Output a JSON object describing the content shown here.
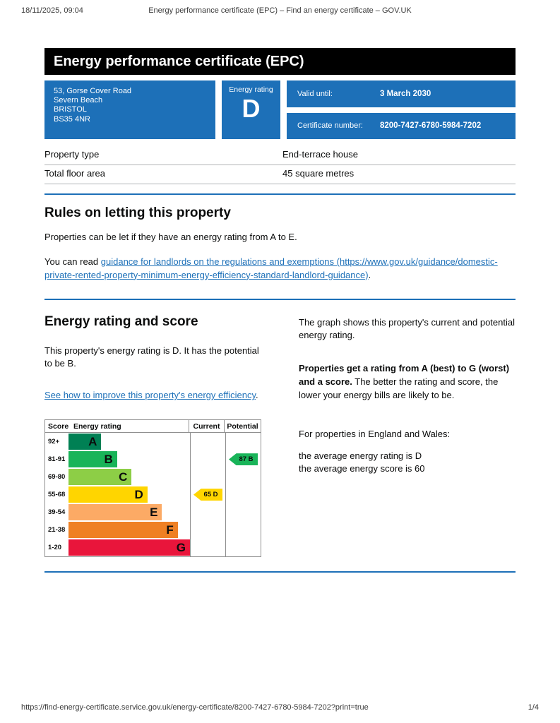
{
  "print_header": {
    "datetime": "18/11/2025, 09:04",
    "title": "Energy performance certificate (EPC) – Find an energy certificate – GOV.UK"
  },
  "banner": {
    "title": "Energy performance certificate (EPC)"
  },
  "summary": {
    "address_lines": [
      "53, Gorse Cover Road",
      "Severn Beach",
      "BRISTOL",
      "BS35 4NR"
    ],
    "rating_label": "Energy rating",
    "rating_value": "D",
    "valid_until_label": "Valid until:",
    "valid_until_value": "3 March 2030",
    "cert_number_label": "Certificate number:",
    "cert_number_value": "8200-7427-6780-5984-7202"
  },
  "details": {
    "rows": [
      {
        "label": "Property type",
        "value": "End-terrace house"
      },
      {
        "label": "Total floor area",
        "value": "45 square metres"
      }
    ]
  },
  "letting": {
    "heading": "Rules on letting this property",
    "para1": "Properties can be let if they have an energy rating from A to E.",
    "para2_prefix": "You can read ",
    "para2_link": "guidance for landlords on the regulations and exemptions (https://www.gov.uk/guidance/domestic-private-rented-property-minimum-energy-efficiency-standard-landlord-guidance)",
    "para2_suffix": "."
  },
  "rating_section": {
    "heading": "Energy rating and score",
    "para1": "This property's energy rating is D. It has the potential to be B.",
    "improve_link": "See how to improve this property's energy efficiency",
    "improve_suffix": ".",
    "right_para1": "The graph shows this property's current and potential energy rating.",
    "right_para2_bold": "Properties get a rating from A (best) to G (worst) and a score.",
    "right_para2_rest": " The better the rating and score, the lower your energy bills are likely to be.",
    "right_para3": "For properties in England and Wales:",
    "right_para4_line1": "the average energy rating is D",
    "right_para4_line2": "the average energy score is 60"
  },
  "chart_data": {
    "type": "bar",
    "orientation": "horizontal",
    "title": "Energy rating and score",
    "headers": {
      "score": "Score",
      "rating": "Energy rating",
      "current": "Current",
      "potential": "Potential"
    },
    "bands": [
      {
        "score": "92+",
        "letter": "A",
        "color": "#008054",
        "width_pct": 27
      },
      {
        "score": "81-91",
        "letter": "B",
        "color": "#19b459",
        "width_pct": 40
      },
      {
        "score": "69-80",
        "letter": "C",
        "color": "#8dce46",
        "width_pct": 52
      },
      {
        "score": "55-68",
        "letter": "D",
        "color": "#ffd500",
        "width_pct": 65
      },
      {
        "score": "39-54",
        "letter": "E",
        "color": "#fcaa65",
        "width_pct": 77
      },
      {
        "score": "21-38",
        "letter": "F",
        "color": "#ef8023",
        "width_pct": 90
      },
      {
        "score": "1-20",
        "letter": "G",
        "color": "#e9153b",
        "width_pct": 100
      }
    ],
    "current": {
      "score": 65,
      "letter": "D",
      "band_index": 3,
      "color": "#ffd500"
    },
    "potential": {
      "score": 87,
      "letter": "B",
      "band_index": 1,
      "color": "#19b459"
    }
  },
  "print_footer": {
    "url": "https://find-energy-certificate.service.gov.uk/energy-certificate/8200-7427-6780-5984-7202?print=true",
    "page": "1/4"
  },
  "colors": {
    "govuk_blue": "#1d70b8",
    "banner_bg": "#000000",
    "link": "#1d70b8"
  }
}
